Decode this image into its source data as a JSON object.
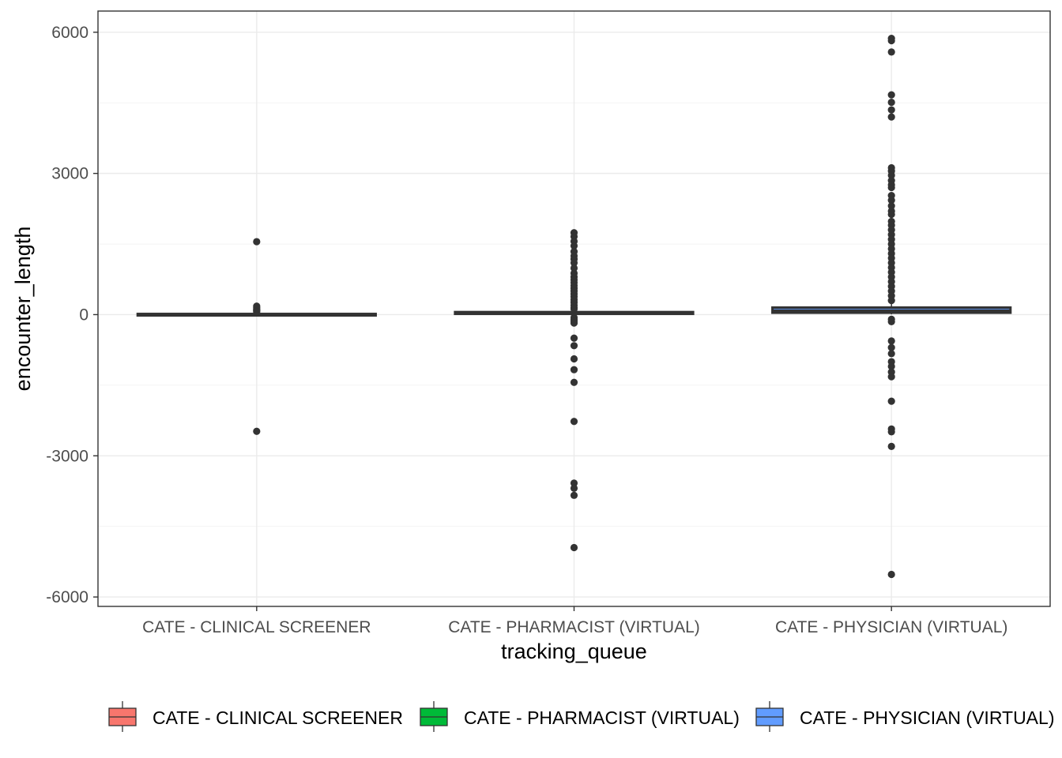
{
  "chart_data": {
    "type": "boxplot",
    "xlabel": "tracking_queue",
    "ylabel": "encounter_length",
    "categories": [
      "CATE - CLINICAL SCREENER",
      "CATE - PHARMACIST (VIRTUAL)",
      "CATE - PHYSICIAN (VIRTUAL)"
    ],
    "ylim": [
      -6200,
      6450
    ],
    "yticks": [
      -6000,
      -3000,
      0,
      3000,
      6000
    ],
    "grid": true,
    "legend": {
      "position": "bottom",
      "entries": [
        "CATE - CLINICAL SCREENER",
        "CATE - PHARMACIST (VIRTUAL)",
        "CATE - PHYSICIAN (VIRTUAL)"
      ]
    },
    "colors": {
      "CATE - CLINICAL SCREENER": "#F8766D",
      "CATE - PHARMACIST (VIRTUAL)": "#00BA38",
      "CATE - PHYSICIAN (VIRTUAL)": "#619CFF",
      "outline": "#333333",
      "outlier": "#333333"
    },
    "boxes": [
      {
        "category": "CATE - CLINICAL SCREENER",
        "q1": 0,
        "median": 5,
        "q3": 15,
        "whisker_low": -15,
        "whisker_high": 30,
        "outliers": [
          1550,
          180,
          150,
          120,
          100,
          80,
          60,
          -2480
        ]
      },
      {
        "category": "CATE - PHARMACIST (VIRTUAL)",
        "q1": 15,
        "median": 30,
        "q3": 55,
        "whisker_low": -20,
        "whisker_high": 95,
        "outliers": [
          1740,
          1660,
          1560,
          1460,
          1340,
          1250,
          1180,
          1100,
          990,
          880,
          800,
          740,
          680,
          620,
          560,
          500,
          440,
          380,
          320,
          260,
          200,
          150,
          120,
          -60,
          -100,
          -140,
          -180,
          -500,
          -660,
          -940,
          -1170,
          -1440,
          -2270,
          -3580,
          -3690,
          -3840,
          -4950
        ]
      },
      {
        "category": "CATE - PHYSICIAN (VIRTUAL)",
        "q1": 40,
        "median": 80,
        "q3": 150,
        "whisker_low": 5,
        "whisker_high": 250,
        "outliers": [
          5870,
          5820,
          5580,
          4670,
          4510,
          4350,
          4200,
          3120,
          3050,
          2960,
          2850,
          2760,
          2700,
          2530,
          2430,
          2310,
          2200,
          2130,
          1980,
          1900,
          1800,
          1700,
          1600,
          1500,
          1400,
          1300,
          1200,
          1100,
          1000,
          900,
          800,
          700,
          600,
          500,
          400,
          300,
          -100,
          -150,
          -560,
          -700,
          -830,
          -1000,
          -1100,
          -1220,
          -1320,
          -1840,
          -2430,
          -2490,
          -2800,
          -5520
        ]
      }
    ]
  }
}
